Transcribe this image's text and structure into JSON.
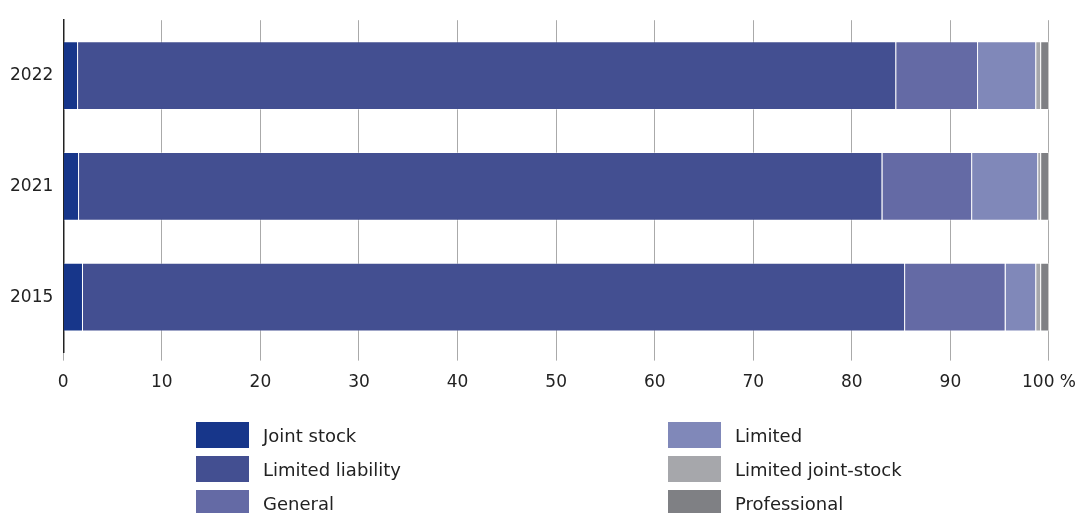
{
  "chart_data": {
    "type": "bar",
    "orientation": "horizontal",
    "stacked": true,
    "categories": [
      "2022",
      "2021",
      "2015"
    ],
    "series": [
      {
        "name": "Joint stock",
        "color": "#17368a",
        "values": [
          1.5,
          1.6,
          2.0
        ]
      },
      {
        "name": "Limited liability",
        "color": "#434f91",
        "values": [
          83.0,
          81.5,
          83.4
        ]
      },
      {
        "name": "General",
        "color": "#646aa5",
        "values": [
          8.3,
          9.1,
          10.2
        ]
      },
      {
        "name": "Limited",
        "color": "#8088b9",
        "values": [
          5.9,
          6.7,
          3.1
        ]
      },
      {
        "name": "Limited joint-stock",
        "color": "#a6a7ab",
        "values": [
          0.5,
          0.3,
          0.5
        ]
      },
      {
        "name": "Professional",
        "color": "#7f8084",
        "values": [
          0.8,
          0.8,
          0.8
        ]
      }
    ],
    "xlim": [
      0,
      100
    ],
    "xticks": [
      0,
      10,
      20,
      30,
      40,
      50,
      60,
      70,
      80,
      90,
      {
        "value": 100,
        "label": "100 %"
      }
    ],
    "grid": "x",
    "legend": "bottom"
  }
}
